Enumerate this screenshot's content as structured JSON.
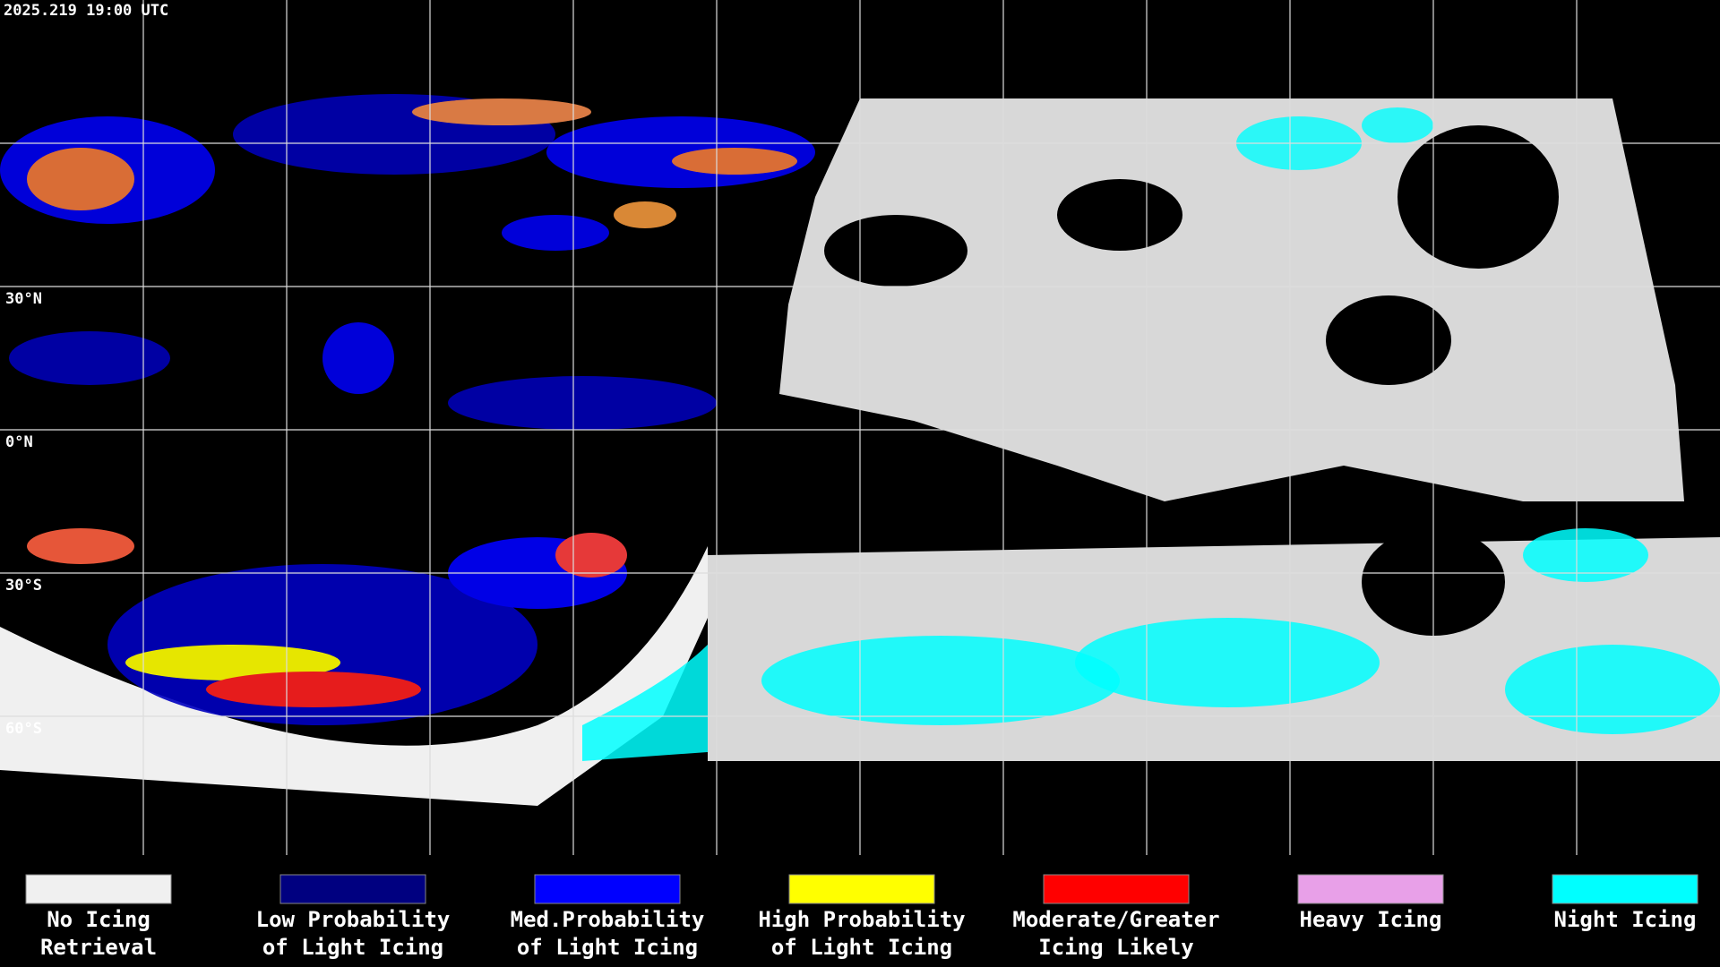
{
  "timestamp": "2025.219 19:00 UTC",
  "lat_labels": [
    "30°N",
    "0°N",
    "30°S",
    "60°S"
  ],
  "legend": [
    {
      "lines": [
        "No Icing",
        "Retrieval"
      ],
      "color": "#f0f0f0"
    },
    {
      "lines": [
        "Low Probability",
        "of Light Icing"
      ],
      "color": "#000080"
    },
    {
      "lines": [
        "Med.Probability",
        "of Light Icing"
      ],
      "color": "#0000ff"
    },
    {
      "lines": [
        "High Probability",
        "of Light Icing"
      ],
      "color": "#ffff00"
    },
    {
      "lines": [
        "Moderate/Greater",
        "Icing Likely"
      ],
      "color": "#ff0000"
    },
    {
      "lines": [
        "Heavy Icing"
      ],
      "color": "#e8a0e8"
    },
    {
      "lines": [
        "Night Icing"
      ],
      "color": "#00ffff"
    }
  ]
}
